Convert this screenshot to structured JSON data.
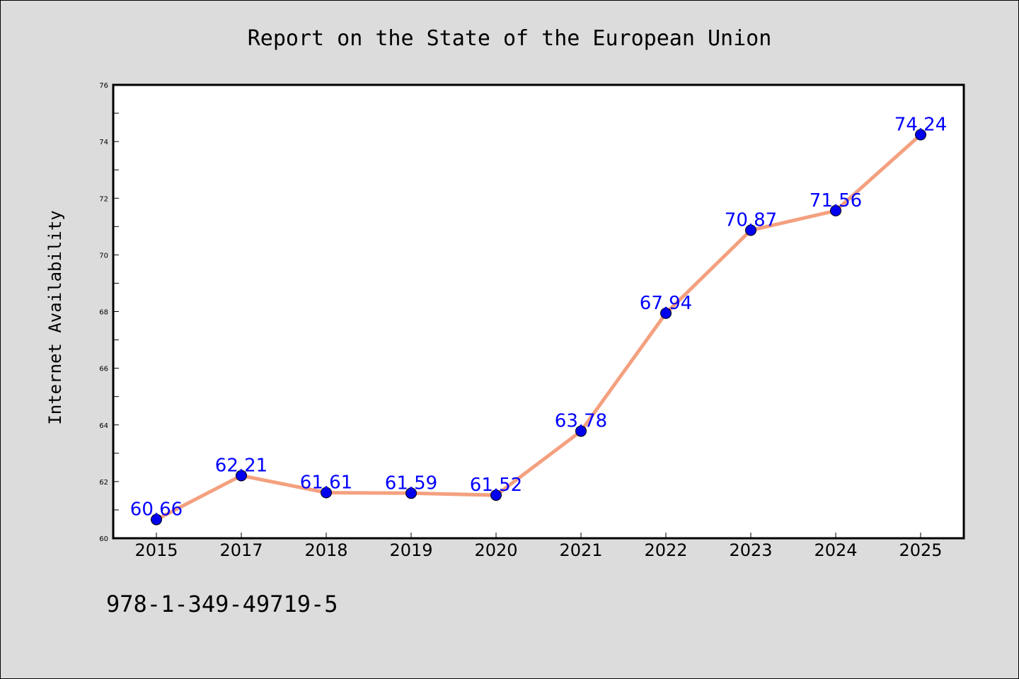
{
  "chart_data": {
    "type": "line",
    "title": "Report on the State of the European Union",
    "xlabel": "",
    "ylabel": "Internet Availability",
    "categories": [
      "2015",
      "2017",
      "2018",
      "2019",
      "2020",
      "2021",
      "2022",
      "2023",
      "2024",
      "2025"
    ],
    "values": [
      60.66,
      62.21,
      61.61,
      61.59,
      61.52,
      63.78,
      67.94,
      70.87,
      71.56,
      74.24
    ],
    "data_labels": [
      "60.66",
      "62.21",
      "61.61",
      "61.59",
      "61.52",
      "63.78",
      "67.94",
      "70.87",
      "71.56",
      "74.24"
    ],
    "ylim": [
      60,
      76
    ],
    "yticks": [
      60,
      62,
      64,
      66,
      68,
      70,
      72,
      74,
      76
    ],
    "grid": false,
    "line_color": "#f4a07f",
    "marker_color": "#0000ee",
    "label_color": "#0000ff"
  },
  "footer": {
    "isbn": "978-1-349-49719-5"
  }
}
